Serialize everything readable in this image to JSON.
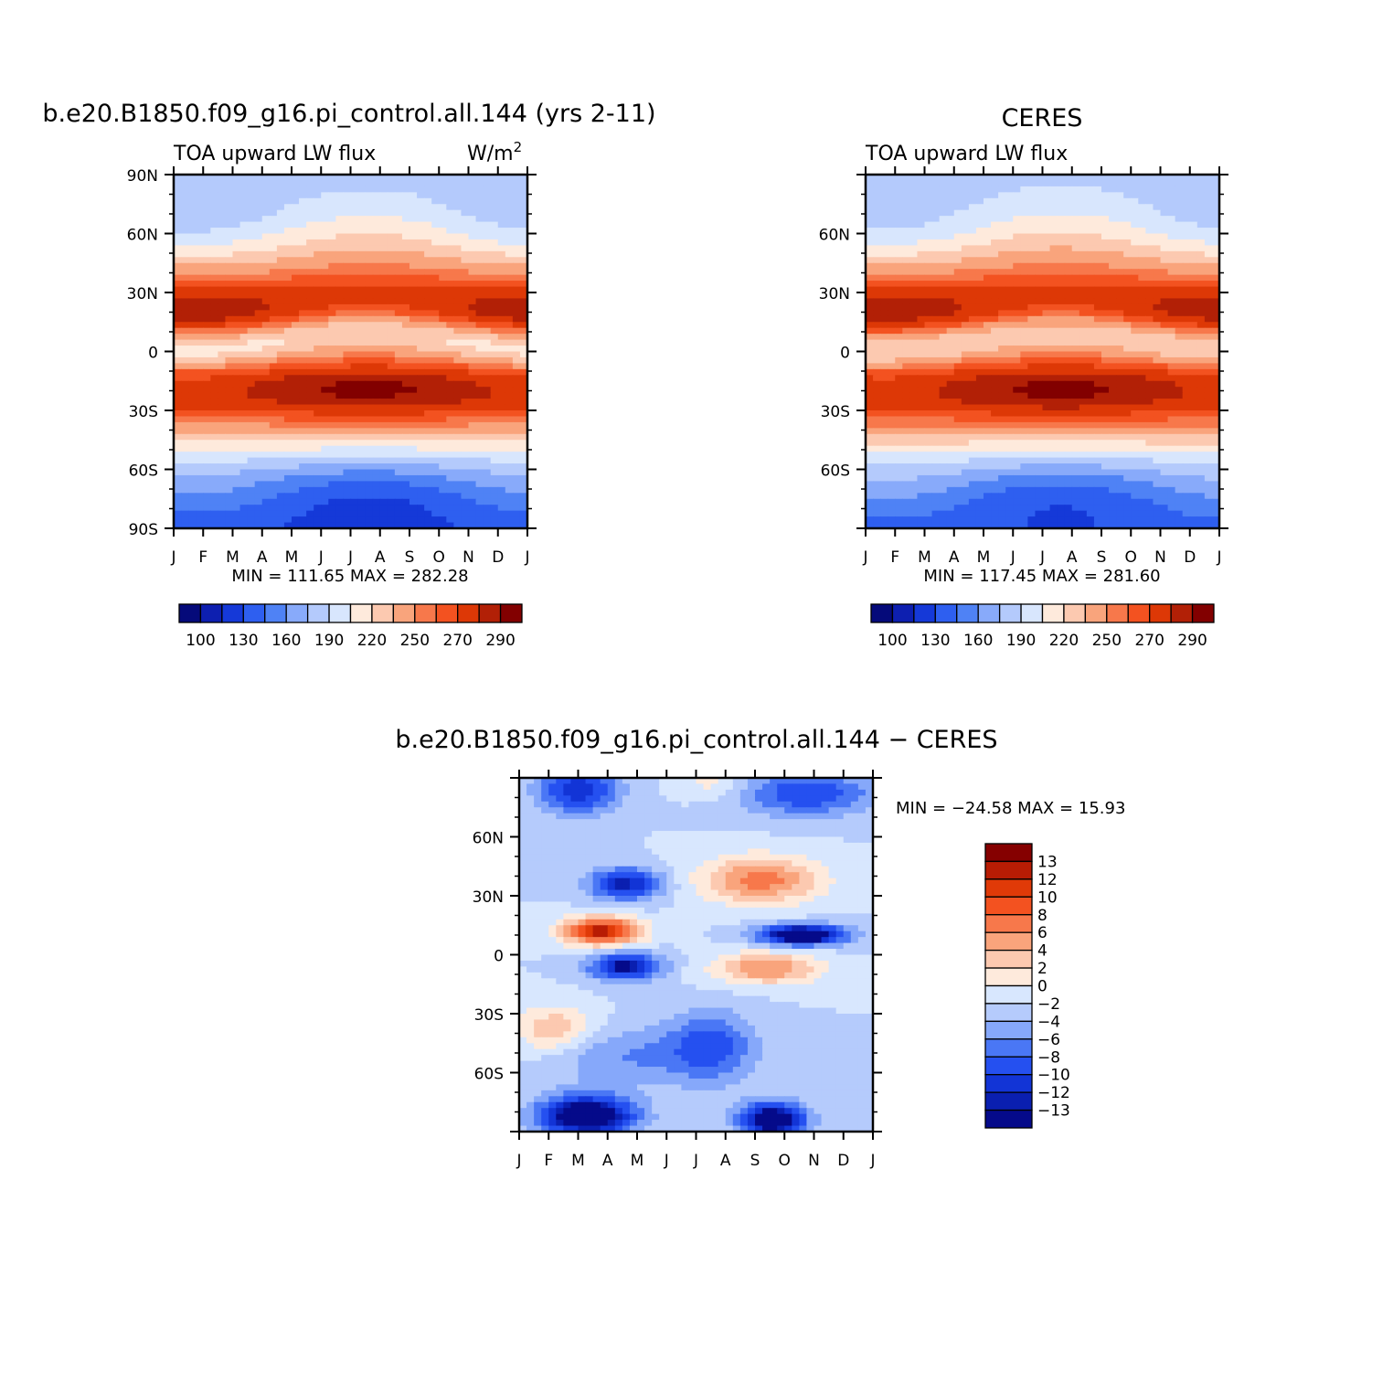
{
  "chart_data": [
    {
      "type": "heatmap",
      "title": "b.e20.B1850.f09_g16.pi_control.all.144 (yrs 2-11)",
      "left_string": "TOA upward LW flux",
      "units_base": "W/m",
      "units_exp": "2",
      "x_tick_labels": [
        "J",
        "F",
        "M",
        "A",
        "M",
        "J",
        "J",
        "A",
        "S",
        "O",
        "N",
        "D",
        "J"
      ],
      "y_tick_labels": [
        "90N",
        "60N",
        "30N",
        "0",
        "30S",
        "60S",
        "90S"
      ],
      "ylim": [
        -90,
        90
      ],
      "xlim": [
        0,
        12
      ],
      "minmax_text": "MIN = 111.65 MAX = 282.28",
      "min": 111.65,
      "max": 282.28,
      "field": {
        "polar_n": 180,
        "polar_s": 125,
        "gap": 4
      },
      "colorbar": {
        "orientation": "horizontal",
        "labels": [
          "100",
          "130",
          "160",
          "190",
          "220",
          "250",
          "270",
          "290"
        ]
      }
    },
    {
      "type": "heatmap",
      "title": "CERES",
      "left_string": "TOA upward LW flux",
      "x_tick_labels": [
        "J",
        "F",
        "M",
        "A",
        "M",
        "J",
        "J",
        "A",
        "S",
        "O",
        "N",
        "D",
        "J"
      ],
      "y_tick_labels": [
        "60N",
        "30N",
        "0",
        "30S",
        "60S"
      ],
      "ylim": [
        -90,
        90
      ],
      "xlim": [
        0,
        12
      ],
      "minmax_text": "MIN = 117.45 MAX = 281.60",
      "min": 117.45,
      "max": 281.6,
      "field": {
        "polar_n": 182,
        "polar_s": 130,
        "gap": 0
      },
      "colorbar": {
        "orientation": "horizontal",
        "labels": [
          "100",
          "130",
          "160",
          "190",
          "220",
          "250",
          "270",
          "290"
        ]
      }
    },
    {
      "type": "heatmap",
      "title": "b.e20.B1850.f09_g16.pi_control.all.144 − CERES",
      "x_tick_labels": [
        "J",
        "F",
        "M",
        "A",
        "M",
        "J",
        "J",
        "A",
        "S",
        "O",
        "N",
        "D",
        "J"
      ],
      "y_tick_labels": [
        "60N",
        "30N",
        "0",
        "30S",
        "60S"
      ],
      "ylim": [
        -90,
        90
      ],
      "xlim": [
        0,
        12
      ],
      "minmax_text": "MIN = −24.58 MAX =   15.93",
      "min": -24.58,
      "max": 15.93,
      "colorbar": {
        "orientation": "vertical",
        "labels": [
          "13",
          "12",
          "10",
          "8",
          "6",
          "4",
          "2",
          "0",
          "−2",
          "−4",
          "−6",
          "−8",
          "−10",
          "−12",
          "−13"
        ]
      }
    }
  ],
  "palettes": {
    "flux_levels": [
      100,
      110,
      130,
      145,
      160,
      175,
      190,
      205,
      220,
      235,
      250,
      260,
      270,
      280,
      290
    ],
    "flux_colors": [
      "#050a7a",
      "#0d1fb0",
      "#1539d8",
      "#2e5ff0",
      "#4f82f5",
      "#88aafa",
      "#b4cafc",
      "#d8e6fd",
      "#feeadc",
      "#fcc9b0",
      "#f9a47c",
      "#f7784b",
      "#f35220",
      "#dd3806",
      "#b22006",
      "#820000"
    ],
    "diff_levels": [
      -13,
      -12,
      -10,
      -8,
      -6,
      -4,
      -2,
      0,
      2,
      4,
      6,
      8,
      10,
      12,
      13
    ],
    "diff_colors": [
      "#050a8a",
      "#0a1fb0",
      "#1234d6",
      "#2550f0",
      "#4a77f5",
      "#86a8fa",
      "#b5cbfc",
      "#d8e7fe",
      "#feeadc",
      "#fcc9b0",
      "#f9a47c",
      "#f7784b",
      "#f35220",
      "#e03a08",
      "#b81c04",
      "#850000"
    ]
  }
}
